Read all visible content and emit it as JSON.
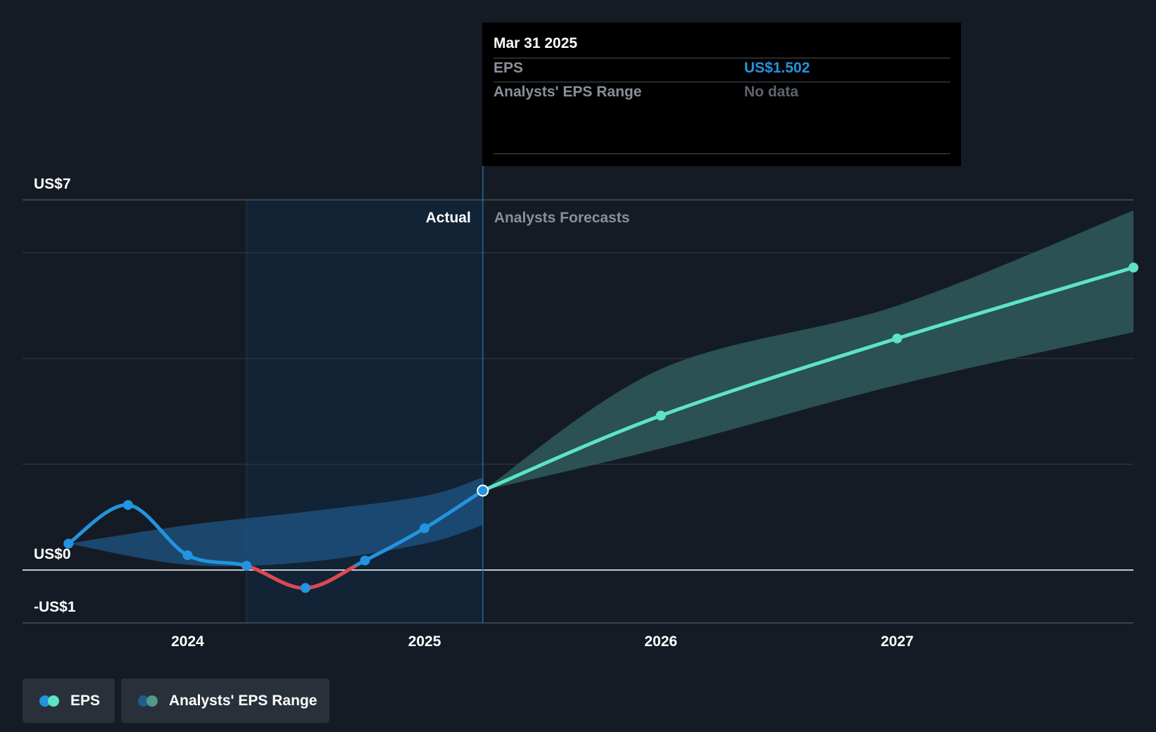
{
  "tooltip": {
    "date": "Mar 31 2025",
    "eps_label": "EPS",
    "eps_value": "US$1.502",
    "range_label": "Analysts' EPS Range",
    "range_value": "No data"
  },
  "legend": [
    {
      "label": "EPS",
      "colors": [
        "#2394df",
        "#5ee3c7"
      ]
    },
    {
      "label": "Analysts' EPS Range",
      "colors": [
        "#1f5e8a",
        "#4f9a8b"
      ]
    }
  ],
  "colors": {
    "eps_actual": "#2394df",
    "eps_negative": "#e0484f",
    "eps_forecast": "#5ee3c7",
    "range_actual": "#1d4f7a",
    "range_forecast": "#2f5b5b",
    "background": "#151b24"
  },
  "chart_data": {
    "type": "line",
    "y_tick_labels": [
      "US$7",
      "US$0",
      "-US$1"
    ],
    "x_tick_labels": [
      "2024",
      "2025",
      "2026",
      "2027"
    ],
    "ylim": [
      -1,
      7
    ],
    "xlim": [
      "2023-04-20",
      "2027-12-31"
    ],
    "region_labels": {
      "actual": "Actual",
      "forecast": "Analysts Forecasts"
    },
    "highlight_date": "2025-03-31",
    "series": [
      {
        "name": "EPS",
        "segment": "actual",
        "points": [
          {
            "x": "2023-06-30",
            "y": 0.5
          },
          {
            "x": "2023-09-30",
            "y": 1.23
          },
          {
            "x": "2023-12-31",
            "y": 0.28
          },
          {
            "x": "2024-03-31",
            "y": 0.08
          },
          {
            "x": "2024-06-30",
            "y": -0.34
          },
          {
            "x": "2024-09-30",
            "y": 0.18
          },
          {
            "x": "2024-12-31",
            "y": 0.79
          },
          {
            "x": "2025-03-31",
            "y": 1.502
          }
        ]
      },
      {
        "name": "EPS",
        "segment": "forecast",
        "points": [
          {
            "x": "2025-03-31",
            "y": 1.502
          },
          {
            "x": "2025-12-31",
            "y": 2.92
          },
          {
            "x": "2026-12-31",
            "y": 4.38
          },
          {
            "x": "2027-12-31",
            "y": 5.72
          }
        ]
      },
      {
        "name": "Analysts' EPS Range",
        "segment": "actual",
        "upper": [
          {
            "x": "2023-06-30",
            "y": 0.5
          },
          {
            "x": "2023-12-31",
            "y": 0.85
          },
          {
            "x": "2024-06-30",
            "y": 1.1
          },
          {
            "x": "2024-12-31",
            "y": 1.4
          },
          {
            "x": "2025-03-31",
            "y": 1.75
          }
        ],
        "lower": [
          {
            "x": "2023-06-30",
            "y": 0.5
          },
          {
            "x": "2023-12-31",
            "y": 0.1
          },
          {
            "x": "2024-06-30",
            "y": 0.15
          },
          {
            "x": "2024-12-31",
            "y": 0.5
          },
          {
            "x": "2025-03-31",
            "y": 0.85
          }
        ]
      },
      {
        "name": "Analysts' EPS Range",
        "segment": "forecast",
        "upper": [
          {
            "x": "2025-03-31",
            "y": 1.502
          },
          {
            "x": "2025-12-31",
            "y": 3.8
          },
          {
            "x": "2026-12-31",
            "y": 5.0
          },
          {
            "x": "2027-12-31",
            "y": 6.8
          }
        ],
        "lower": [
          {
            "x": "2025-03-31",
            "y": 1.502
          },
          {
            "x": "2025-12-31",
            "y": 2.3
          },
          {
            "x": "2026-12-31",
            "y": 3.5
          },
          {
            "x": "2027-12-31",
            "y": 4.5
          }
        ]
      }
    ]
  }
}
